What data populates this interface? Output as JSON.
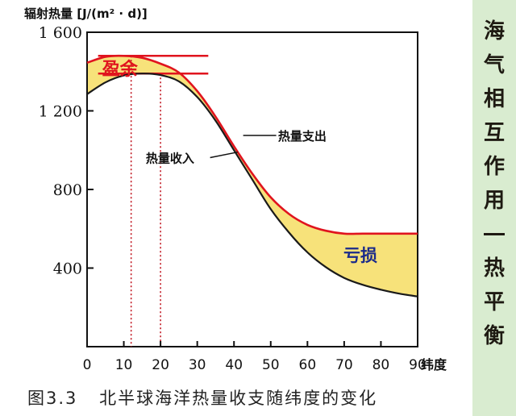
{
  "chart_data": {
    "type": "line",
    "title": "",
    "ylabel": "辐射热量 [J/(m² · d)]",
    "xlabel": "纬度",
    "xlim": [
      0,
      90
    ],
    "ylim": [
      0,
      1600
    ],
    "x_ticks": [
      "0",
      "10",
      "20",
      "30",
      "40",
      "50",
      "60",
      "70",
      "80",
      "90"
    ],
    "y_ticks": [
      "400",
      "800",
      "1 200",
      "1 600"
    ],
    "grid": false,
    "series": [
      {
        "name": "热量收入",
        "color": "#1a1a1a",
        "x": [
          0,
          5,
          10,
          15,
          20,
          25,
          30,
          35,
          40,
          45,
          50,
          55,
          60,
          65,
          70,
          75,
          80,
          85,
          90
        ],
        "y": [
          1285,
          1345,
          1380,
          1390,
          1382,
          1350,
          1270,
          1150,
          1000,
          850,
          700,
          580,
          480,
          405,
          350,
          315,
          290,
          270,
          255
        ]
      },
      {
        "name": "热量支出",
        "color": "#e0141e",
        "x": [
          0,
          5,
          10,
          15,
          20,
          25,
          30,
          35,
          40,
          45,
          50,
          55,
          60,
          65,
          70,
          75,
          80,
          85,
          90
        ],
        "y": [
          1445,
          1475,
          1480,
          1470,
          1440,
          1395,
          1300,
          1170,
          1020,
          880,
          760,
          675,
          620,
          590,
          575,
          575,
          575,
          575,
          575
        ]
      }
    ],
    "reference_lines": [
      {
        "type": "horizontal",
        "y": 1480,
        "x_range": [
          3,
          33
        ],
        "color": "#e0141e"
      },
      {
        "type": "horizontal",
        "y": 1390,
        "x_range": [
          3,
          33
        ],
        "color": "#e0141e"
      },
      {
        "type": "vertical",
        "x": 12,
        "y_range": [
          0,
          1480
        ],
        "color": "#c0141e",
        "style": "dotted"
      },
      {
        "type": "vertical",
        "x": 20,
        "y_range": [
          0,
          1390
        ],
        "color": "#c0141e",
        "style": "dotted"
      }
    ],
    "annotations": [
      {
        "text": "盈余",
        "color": "#e0141e",
        "at": [
          5,
          1390
        ]
      },
      {
        "text": "亏损",
        "color": "#1a2a8a",
        "at": [
          72,
          500
        ]
      },
      {
        "text": "热量支出",
        "color": "#111111",
        "at": [
          52,
          1080
        ]
      },
      {
        "text": "热量收入",
        "color": "#111111",
        "at": [
          16,
          960
        ]
      }
    ],
    "fill_color": "#f7e27a"
  },
  "caption": {
    "figure_no": "图3.3",
    "text": "北半球海洋热量收支随纬度的变化"
  },
  "side_panel": {
    "chars_top": [
      "海",
      "气",
      "相",
      "互",
      "作",
      "用"
    ],
    "chars_bottom": [
      "热",
      "平",
      "衡"
    ]
  }
}
